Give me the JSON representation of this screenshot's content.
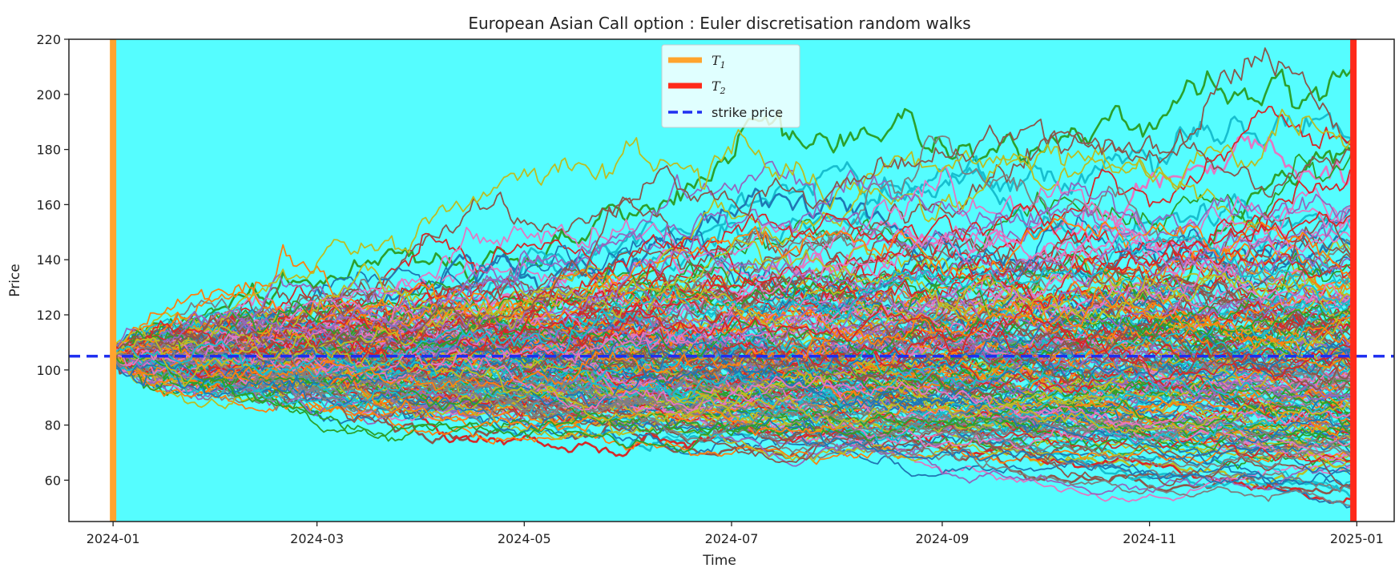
{
  "chart_data": {
    "type": "line",
    "title": "European Asian Call option : Euler discretisation random walks",
    "xlabel": "Time",
    "ylabel": "Price",
    "x_range": [
      "2023-12-19",
      "2025-01-12"
    ],
    "ylim": [
      45,
      220
    ],
    "x_ticks": [
      "2024-01",
      "2024-03",
      "2024-05",
      "2024-07",
      "2024-09",
      "2024-11",
      "2025-01"
    ],
    "x_tick_dates": [
      "2024-01-01",
      "2024-03-01",
      "2024-05-01",
      "2024-07-01",
      "2024-09-01",
      "2024-11-01",
      "2025-01-01"
    ],
    "y_ticks": [
      60,
      80,
      100,
      120,
      140,
      160,
      180,
      200,
      220
    ],
    "grid": false,
    "background_shading": {
      "start": "2024-01-01",
      "end": "2024-12-31",
      "color": "#55fdff"
    },
    "legend_position": "top-center",
    "legend": [
      {
        "label": "T",
        "subscript": "1",
        "color": "#ffa42e",
        "style": "solid"
      },
      {
        "label": "T",
        "subscript": "2",
        "color": "#ff2a1a",
        "style": "solid"
      },
      {
        "label": "strike price",
        "color": "#1f2ff0",
        "style": "dashed"
      }
    ],
    "vertical_lines": [
      {
        "name": "T1",
        "date": "2024-01-01",
        "color": "#ffa42e"
      },
      {
        "name": "T2",
        "date": "2024-12-31",
        "color": "#ff2a1a"
      }
    ],
    "strike_price": 105,
    "initial_price": 105,
    "num_paths_rendered": 220,
    "highlighted_path_endpoints": [
      211,
      181,
      178,
      170,
      158,
      150,
      64,
      58,
      55,
      54
    ],
    "path_palette": [
      "#1f77b4",
      "#ff7f0e",
      "#2ca02c",
      "#d62728",
      "#9467bd",
      "#8c564b",
      "#e377c2",
      "#7f7f7f",
      "#bcbd22",
      "#17becf"
    ]
  }
}
